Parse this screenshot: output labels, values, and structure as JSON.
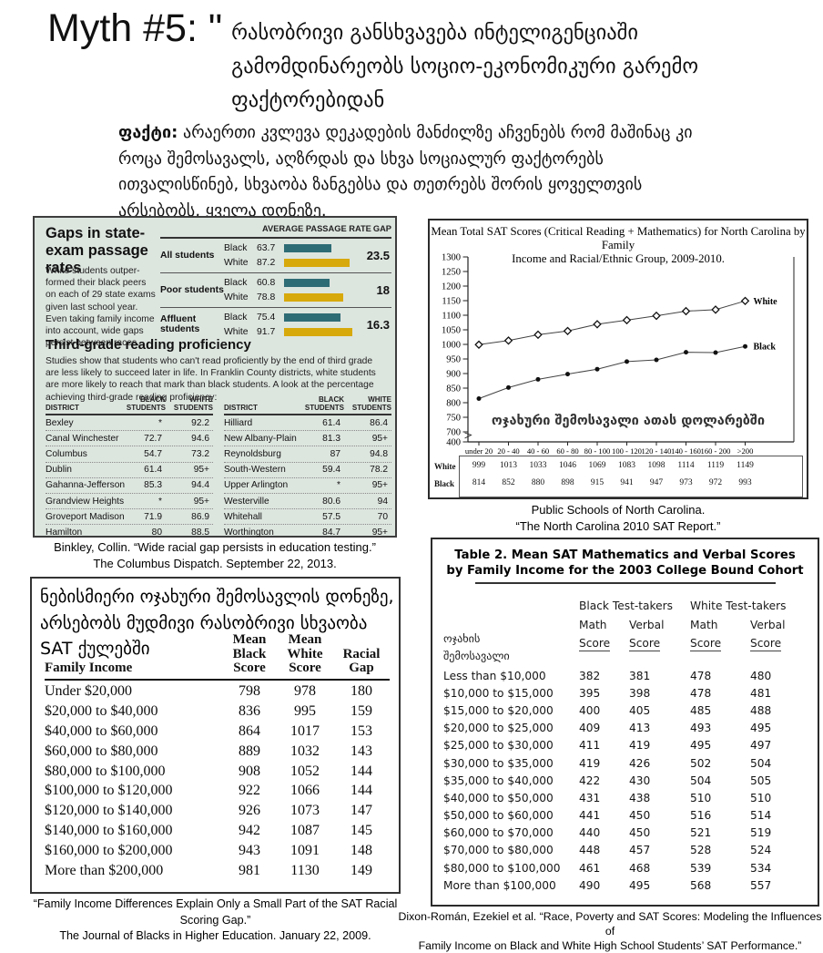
{
  "header": {
    "myth_label": "Myth #5: \"",
    "title_georgian": "რასობრივი განსხვავება ინტელიგენციაში გამომდინარეობს სოციო-ეკონომიკური გარემო ფაქტორებიდან",
    "fact_label": "ფაქტი:",
    "fact_text": " არაერთი კვლევა დეკადების მანძილზე აჩვენებს რომ მაშინაც კი როცა შემოსავალს, აღზრდას და სხვა სოციალურ ფაქტორებს ითვალისწინებ, სხვაობა ზანგებსა და თეთრებს შორის ყოველთვის არსებობს, ყველა დონეზე."
  },
  "chart_data": [
    {
      "type": "bar",
      "id": "state-exam-bars",
      "title": "AVERAGE PASSAGE RATE",
      "gap_label": "GAP",
      "categories": [
        "All students",
        "Poor students",
        "Affluent students"
      ],
      "race_labels": [
        "Black",
        "White"
      ],
      "series": [
        {
          "name": "Black",
          "color": "#2e6c75",
          "values": [
            63.7,
            60.8,
            75.4
          ]
        },
        {
          "name": "White",
          "color": "#d7a90b",
          "values": [
            87.2,
            78.8,
            91.7
          ]
        }
      ],
      "gaps": [
        "23.5",
        "18",
        "16.3"
      ],
      "xlim": [
        0,
        100
      ]
    },
    {
      "type": "line",
      "id": "nc-sat-lines",
      "title_line1": "Mean Total SAT Scores (Critical Reading + Mathematics) for North Carolina by Family",
      "title_line2": "Income and Racial/Ethnic Group, 2009-2010.",
      "x_categories": [
        "under 20",
        "20 - 40",
        "40 - 60",
        "60 - 80",
        "80 - 100",
        "100 - 120",
        "120 - 140",
        "140 - 160",
        "160 - 200",
        ">200"
      ],
      "series": [
        {
          "name": "White",
          "marker": "open",
          "values": [
            999,
            1013,
            1033,
            1046,
            1069,
            1083,
            1098,
            1114,
            1119,
            1149
          ]
        },
        {
          "name": "Black",
          "marker": "filled",
          "values": [
            814,
            852,
            880,
            898,
            915,
            941,
            947,
            973,
            972,
            993
          ]
        }
      ],
      "y_ticks": [
        1300,
        1250,
        1200,
        1150,
        1100,
        1050,
        1000,
        950,
        900,
        850,
        800,
        750,
        700,
        400
      ],
      "ylim": [
        400,
        1300
      ],
      "axis_break": true,
      "x_annotation_georgian": "ოჯახური შემოსავალი ათას დოლარებში",
      "legend_position": "line-end-labels",
      "grid": false
    }
  ],
  "state_exam": {
    "title": "Gaps in state-exam passage rates",
    "intro": "White students outper- formed their black peers on each of 29 state exams given last school year. Even taking family income into account, wide gaps persist between races.",
    "reading_title": "Third-grade reading proficiency",
    "reading_intro": "Studies show that students who can't read proficiently by the end of third grade are less likely to succeed later in life. In Franklin County districts, white students are more likely to reach that mark than black students. A look at the percentage achieving third-grade reading proficiency:",
    "table_headers": [
      "DISTRICT",
      "BLACK\nSTUDENTS",
      "WHITE\nSTUDENTS"
    ],
    "districts_left": [
      [
        "Bexley",
        "*",
        "92.2"
      ],
      [
        "Canal Winchester",
        "72.7",
        "94.6"
      ],
      [
        "Columbus",
        "54.7",
        "73.2"
      ],
      [
        "Dublin",
        "61.4",
        "95+"
      ],
      [
        "Gahanna-Jefferson",
        "85.3",
        "94.4"
      ],
      [
        "Grandview Heights",
        "*",
        "95+"
      ],
      [
        "Groveport Madison",
        "71.9",
        "86.9"
      ],
      [
        "Hamilton",
        "80",
        "88.5"
      ]
    ],
    "districts_right": [
      [
        "Hilliard",
        "61.4",
        "86.4"
      ],
      [
        "New Albany-Plain",
        "81.3",
        "95+"
      ],
      [
        "Reynoldsburg",
        "87",
        "94.8"
      ],
      [
        "South-Western",
        "59.4",
        "78.2"
      ],
      [
        "Upper Arlington",
        "*",
        "95+"
      ],
      [
        "Westerville",
        "80.6",
        "94"
      ],
      [
        "Whitehall",
        "57.5",
        "70"
      ],
      [
        "Worthington",
        "84.7",
        "95+"
      ]
    ],
    "caption_line1": "Binkley, Collin. “Wide racial gap persists in education testing.”",
    "caption_line2": "The Columbus Dispatch. September 22, 2013."
  },
  "nc_panel": {
    "caption_line1": "Public Schools of North Carolina.",
    "caption_line2": "“The North Carolina 2010 SAT Report.”"
  },
  "income_panel": {
    "heading_georgian": "ნებისმიერი ოჯახური შემოსავლის დონეზე, არსებობს მუდმივი რასობრივი სხვაობა SAT ქულებში",
    "header_stacks": [
      "Family Income",
      "Mean\nBlack\nScore",
      "Mean\nWhite\nScore",
      "Racial\nGap"
    ],
    "rows": [
      [
        "Under $20,000",
        "798",
        "978",
        "180"
      ],
      [
        "$20,000 to $40,000",
        "836",
        "995",
        "159"
      ],
      [
        "$40,000 to $60,000",
        "864",
        "1017",
        "153"
      ],
      [
        "$60,000 to $80,000",
        "889",
        "1032",
        "143"
      ],
      [
        "$80,000 to $100,000",
        "908",
        "1052",
        "144"
      ],
      [
        "$100,000 to $120,000",
        "922",
        "1066",
        "144"
      ],
      [
        "$120,000 to $140,000",
        "926",
        "1073",
        "147"
      ],
      [
        "$140,000 to $160,000",
        "942",
        "1087",
        "145"
      ],
      [
        "$160,000 to $200,000",
        "943",
        "1091",
        "148"
      ],
      [
        "More than $200,000",
        "981",
        "1130",
        "149"
      ]
    ],
    "caption_line1": "“Family Income Differences Explain Only a Small Part of the SAT Racial Scoring Gap.”",
    "caption_line2": "The Journal of Blacks in Higher Education. January 22, 2009."
  },
  "table2_panel": {
    "title_line1": "Table 2. Mean SAT Mathematics and Verbal Scores",
    "title_line2": "by Family Income for the 2003 College Bound Cohort",
    "group_headers": [
      "Black Test-takers",
      "White Test-takers"
    ],
    "sub_headers": [
      "Math",
      "Verbal",
      "Math",
      "Verbal"
    ],
    "score_label": "Score",
    "row_header_georgian": "ოჯახის\nშემოსავალი",
    "rows": [
      [
        "Less than $10,000",
        "382",
        "381",
        "478",
        "480"
      ],
      [
        "$10,000 to $15,000",
        "395",
        "398",
        "478",
        "481"
      ],
      [
        "$15,000 to $20,000",
        "400",
        "405",
        "485",
        "488"
      ],
      [
        "$20,000 to $25,000",
        "409",
        "413",
        "493",
        "495"
      ],
      [
        "$25,000 to $30,000",
        "411",
        "419",
        "495",
        "497"
      ],
      [
        "$30,000 to $35,000",
        "419",
        "426",
        "502",
        "504"
      ],
      [
        "$35,000 to $40,000",
        "422",
        "430",
        "504",
        "505"
      ],
      [
        "$40,000 to $50,000",
        "431",
        "438",
        "510",
        "510"
      ],
      [
        "$50,000 to $60,000",
        "441",
        "450",
        "516",
        "514"
      ],
      [
        "$60,000 to $70,000",
        "440",
        "450",
        "521",
        "519"
      ],
      [
        "$70,000 to $80,000",
        "448",
        "457",
        "528",
        "524"
      ],
      [
        "$80,000 to $100,000",
        "461",
        "468",
        "539",
        "534"
      ],
      [
        "More than $100,000",
        "490",
        "495",
        "568",
        "557"
      ]
    ],
    "caption_line1": "Dixon-Román, Ezekiel et al. “Race, Poverty and SAT Scores: Modeling the Influences of",
    "caption_line2": "Family Income on Black and White High School Students’ SAT Performance.”"
  }
}
